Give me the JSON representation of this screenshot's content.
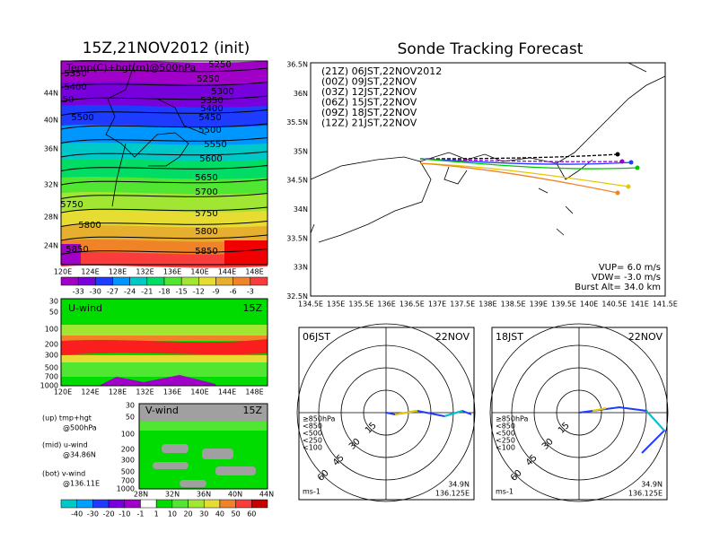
{
  "left": {
    "title": "15Z,21NOV2012 (init)",
    "overlay_label": "Temp(C)+hgt(m)@500hPa",
    "contours_right": [
      "5250",
      "5250",
      "5300",
      "5350",
      "5400",
      "5450",
      "5500",
      "5550",
      "5600",
      "5650",
      "5700",
      "5750",
      "5800",
      "5850"
    ],
    "contours_left": [
      "5350",
      "5400",
      "50",
      "5500",
      "5750",
      "5800",
      "5850"
    ],
    "lat_labels": [
      "44N",
      "40N",
      "36N",
      "32N",
      "28N",
      "24N"
    ],
    "lon_labels": [
      "120E",
      "124E",
      "128E",
      "132E",
      "136E",
      "140E",
      "144E",
      "148E"
    ],
    "colorbar_labels": [
      "-33",
      "-30",
      "-27",
      "-24",
      "-21",
      "-18",
      "-15",
      "-12",
      "-9",
      "-6",
      "-3"
    ]
  },
  "uwind": {
    "label": "U-wind",
    "time": "15Z",
    "pressure_labels": [
      "30",
      "50",
      "100",
      "200",
      "300",
      "500",
      "700",
      "1000"
    ],
    "lon_labels": [
      "120E",
      "124E",
      "128E",
      "132E",
      "136E",
      "140E",
      "144E",
      "148E"
    ]
  },
  "vwind": {
    "label": "V-wind",
    "time": "15Z",
    "pressure_labels": [
      "30",
      "50",
      "100",
      "200",
      "300",
      "500",
      "700",
      "1000"
    ],
    "lat_labels": [
      "28N",
      "32N",
      "36N",
      "40N",
      "44N"
    ]
  },
  "notes": [
    "(up) tmp+hgt",
    "@500hPa",
    "(mid) u-wind",
    "@34.86N",
    "(bot) v-wind",
    "@136.11E"
  ],
  "wind_colorbar_labels": [
    "-40",
    "-30",
    "-20",
    "-10",
    "-1",
    "1",
    "10",
    "20",
    "30",
    "40",
    "50",
    "60"
  ],
  "track": {
    "title": "Sonde Tracking Forecast",
    "legend": [
      {
        "text": "(21Z) 06JST,22NOV2012",
        "color": "#000000"
      },
      {
        "text": "(00Z) 09JST,22NOV",
        "color": "#a000c8"
      },
      {
        "text": "(03Z) 12JST,22NOV",
        "color": "#1e3cff"
      },
      {
        "text": "(06Z) 15JST,22NOV",
        "color": "#00c800"
      },
      {
        "text": "(09Z) 18JST,22NOV",
        "color": "#e6c800"
      },
      {
        "text": "(12Z) 21JST,22NOV",
        "color": "#f08228"
      }
    ],
    "lat_labels": [
      "36.5N",
      "36N",
      "35.5N",
      "35N",
      "34.5N",
      "34N",
      "33.5N",
      "33N",
      "32.5N"
    ],
    "lon_labels": [
      "134.5E",
      "135E",
      "135.5E",
      "136E",
      "136.5E",
      "137E",
      "137.5E",
      "138E",
      "138.5E",
      "139E",
      "139.5E",
      "140E",
      "140.5E",
      "141E",
      "141.5E"
    ],
    "params": [
      "VUP= 6.0 m/s",
      "VDW= -3.0 m/s",
      "Burst Alt= 34.0 km"
    ]
  },
  "hodographs": [
    {
      "time": "06JST",
      "date": "22NOV",
      "levels": [
        "≥850hPa",
        "<850",
        "<500",
        "<250",
        "<100"
      ],
      "speeds": [
        "15",
        "30",
        "45",
        "60"
      ],
      "unit": "ms-1",
      "lat": "34.9N",
      "lon": "136.125E"
    },
    {
      "time": "18JST",
      "date": "22NOV",
      "levels": [
        "≥850hPa",
        "<850",
        "<500",
        "<250",
        "<100"
      ],
      "speeds": [
        "15",
        "30",
        "45",
        "60"
      ],
      "unit": "ms-1",
      "lat": "34.9N",
      "lon": "136.125E"
    }
  ]
}
